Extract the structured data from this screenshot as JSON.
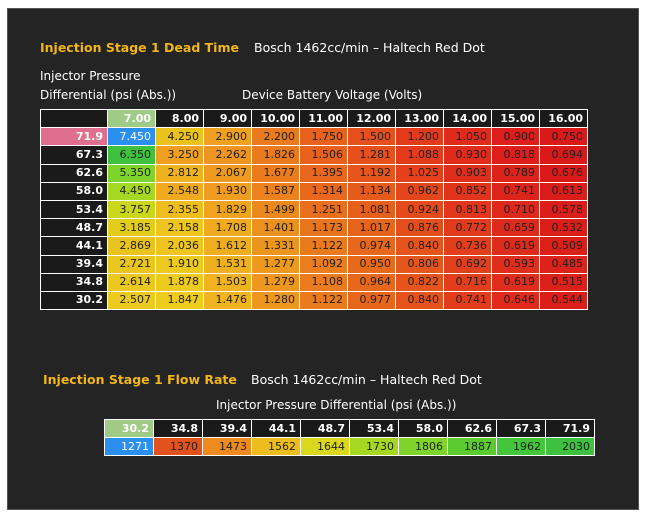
{
  "dead_time": {
    "title": "Injection Stage 1 Dead Time",
    "subtitle": "Bosch 1462cc/min – Haltech Red Dot",
    "row_label_line1": "Injector Pressure",
    "row_label_line2": "Differential (psi (Abs.))",
    "col_label": "Device Battery Voltage  (Volts)",
    "columns": [
      "7.00",
      "8.00",
      "9.00",
      "10.00",
      "11.00",
      "12.00",
      "13.00",
      "14.00",
      "15.00",
      "16.00"
    ],
    "rows": [
      {
        "label": "71.9",
        "values": [
          "7.450",
          "4.250",
          "2.900",
          "2.200",
          "1.750",
          "1.500",
          "1.200",
          "1.050",
          "0.900",
          "0.750"
        ]
      },
      {
        "label": "67.3",
        "values": [
          "6.350",
          "3.250",
          "2.262",
          "1.826",
          "1.506",
          "1.281",
          "1.088",
          "0.930",
          "0.818",
          "0.694"
        ]
      },
      {
        "label": "62.6",
        "values": [
          "5.350",
          "2.812",
          "2.067",
          "1.677",
          "1.395",
          "1.192",
          "1.025",
          "0.903",
          "0.789",
          "0.676"
        ]
      },
      {
        "label": "58.0",
        "values": [
          "4.450",
          "2.548",
          "1.930",
          "1.587",
          "1.314",
          "1.134",
          "0.962",
          "0.852",
          "0.741",
          "0.613"
        ]
      },
      {
        "label": "53.4",
        "values": [
          "3.757",
          "2.355",
          "1.829",
          "1.499",
          "1.251",
          "1.081",
          "0.924",
          "0.813",
          "0.710",
          "0.578"
        ]
      },
      {
        "label": "48.7",
        "values": [
          "3.185",
          "2.158",
          "1.708",
          "1.401",
          "1.173",
          "1.017",
          "0.876",
          "0.772",
          "0.659",
          "0.532"
        ]
      },
      {
        "label": "44.1",
        "values": [
          "2.869",
          "2.036",
          "1.612",
          "1.331",
          "1.122",
          "0.974",
          "0.840",
          "0.736",
          "0.619",
          "0.509"
        ]
      },
      {
        "label": "39.4",
        "values": [
          "2.721",
          "1.910",
          "1.531",
          "1.277",
          "1.092",
          "0.950",
          "0.806",
          "0.692",
          "0.593",
          "0.485"
        ]
      },
      {
        "label": "34.8",
        "values": [
          "2.614",
          "1.878",
          "1.503",
          "1.279",
          "1.108",
          "0.964",
          "0.822",
          "0.716",
          "0.619",
          "0.515"
        ]
      },
      {
        "label": "30.2",
        "values": [
          "2.507",
          "1.847",
          "1.476",
          "1.280",
          "1.122",
          "0.977",
          "0.840",
          "0.741",
          "0.646",
          "0.544"
        ]
      }
    ],
    "colors": [
      [
        "#2b8fef",
        "#e9c21e",
        "#f0a020",
        "#ea7a1e",
        "#e8621e",
        "#e6501c",
        "#e33a1c",
        "#e02a1c",
        "#dd1e1c",
        "#da1a1a"
      ],
      [
        "#3ec13e",
        "#f0a020",
        "#ee9420",
        "#ea7a1e",
        "#e8621e",
        "#e6501c",
        "#e33a1c",
        "#e02a1c",
        "#dd1e1c",
        "#da1a1a"
      ],
      [
        "#7ed42a",
        "#edb21f",
        "#ee9a20",
        "#eb7c1e",
        "#e8661e",
        "#e6561c",
        "#e4401c",
        "#e02e1c",
        "#dd221c",
        "#da1a1a"
      ],
      [
        "#a4d822",
        "#f0aa20",
        "#ee9d20",
        "#eb821e",
        "#e9681e",
        "#e65a1c",
        "#e4461c",
        "#e1341c",
        "#dd241c",
        "#da1c1a"
      ],
      [
        "#cbd71c",
        "#eebd1e",
        "#efa420",
        "#eb881e",
        "#e96e1e",
        "#e6601c",
        "#e44a1c",
        "#e1361c",
        "#de281c",
        "#db1e1a"
      ],
      [
        "#e2cc1c",
        "#eec41e",
        "#efaa20",
        "#ec901e",
        "#e9741e",
        "#e7641c",
        "#e44e1c",
        "#e23a1c",
        "#de2a1c",
        "#db1e1a"
      ],
      [
        "#e9c31e",
        "#edc51e",
        "#efae20",
        "#ec951e",
        "#ea7a1e",
        "#e7681c",
        "#e5541c",
        "#e23e1c",
        "#de2c1c",
        "#db201a"
      ],
      [
        "#e9c61e",
        "#ecc91e",
        "#efb020",
        "#ed991e",
        "#ea7d1e",
        "#e76a1c",
        "#e5561c",
        "#e2401c",
        "#df2e1c",
        "#dc221a"
      ],
      [
        "#eac81e",
        "#ecca1e",
        "#efb220",
        "#ed971e",
        "#ea7b1e",
        "#e7681c",
        "#e5541c",
        "#e23e1c",
        "#df2c1c",
        "#dc201a"
      ],
      [
        "#eaca1e",
        "#edcc1e",
        "#efb420",
        "#ed971e",
        "#ea7a1e",
        "#e7661c",
        "#e5521c",
        "#e23c1c",
        "#df2a1c",
        "#dc1e1a"
      ]
    ]
  },
  "flow_rate": {
    "title": "Injection Stage 1 Flow Rate",
    "subtitle": "Bosch 1462cc/min – Haltech Red Dot",
    "col_label": "Injector Pressure Differential (psi (Abs.))",
    "columns": [
      "30.2",
      "34.8",
      "39.4",
      "44.1",
      "48.7",
      "53.4",
      "58.0",
      "62.6",
      "67.3",
      "71.9"
    ],
    "values": [
      "1271",
      "1370",
      "1473",
      "1562",
      "1644",
      "1730",
      "1806",
      "1887",
      "1962",
      "2030"
    ],
    "colors": [
      "#2b8fef",
      "#e2521c",
      "#ee8a1e",
      "#edbd1e",
      "#d9d81c",
      "#a6d822",
      "#7ed42a",
      "#5ccb30",
      "#44c63a",
      "#3ec13e"
    ]
  }
}
